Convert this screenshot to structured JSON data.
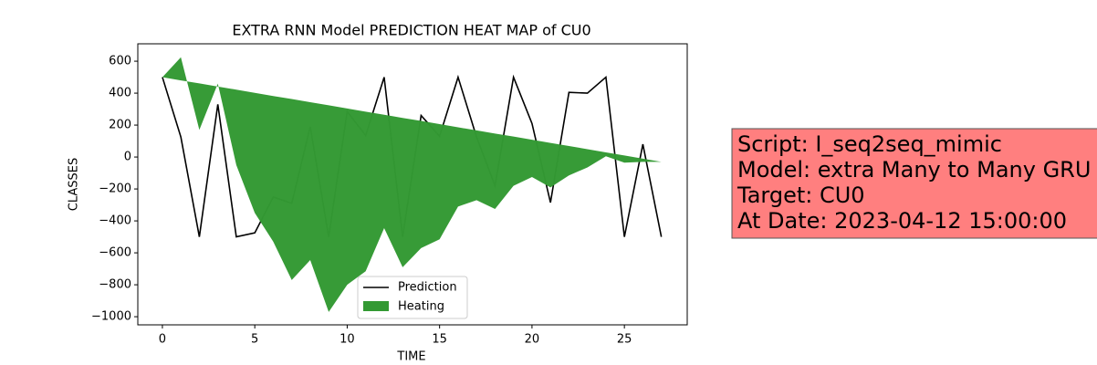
{
  "chart_data": {
    "type": "line",
    "title": "EXTRA RNN Model PREDICTION HEAT MAP of CU0",
    "x_label": "TIME",
    "y_label": "CLASSES",
    "x": [
      0,
      1,
      2,
      3,
      4,
      5,
      6,
      7,
      8,
      9,
      10,
      11,
      12,
      13,
      14,
      15,
      16,
      17,
      18,
      19,
      20,
      21,
      22,
      23,
      24,
      25,
      26,
      27
    ],
    "xlim": [
      -1.33,
      28.4
    ],
    "ylim": [
      -1051,
      709
    ],
    "xticks": [
      0,
      5,
      10,
      15,
      20,
      25
    ],
    "yticks": [
      {
        "value": -1000,
        "label": "−1000"
      },
      {
        "value": -800,
        "label": "−800"
      },
      {
        "value": -600,
        "label": "−600"
      },
      {
        "value": -400,
        "label": "−400"
      },
      {
        "value": -200,
        "label": "−200"
      },
      0,
      200,
      400,
      600
    ],
    "legend": "lower center",
    "series": [
      {
        "name": "Prediction",
        "type": "line",
        "color": "#000000",
        "values": [
          500,
          125,
          -500,
          330,
          -500,
          -475,
          -250,
          -290,
          190,
          -500,
          285,
          135,
          500,
          -500,
          260,
          130,
          500,
          125,
          -180,
          500,
          210,
          -285,
          405,
          400,
          500,
          -500,
          80,
          -500
        ]
      },
      {
        "name": "Heating",
        "type": "fill_between",
        "color": "#339933",
        "y1": [
          500,
          480,
          461,
          441,
          422,
          402,
          382,
          363,
          343,
          324,
          304,
          284,
          265,
          245,
          226,
          206,
          186,
          167,
          147,
          128,
          108,
          88,
          69,
          49,
          29,
          10,
          -10,
          -30
        ],
        "y2": [
          500,
          625,
          170,
          460,
          -50,
          -350,
          -530,
          -770,
          -645,
          -970,
          -800,
          -715,
          -445,
          -690,
          -570,
          -515,
          -310,
          -270,
          -325,
          -180,
          -125,
          -190,
          -115,
          -65,
          5,
          -35,
          -30,
          -30
        ]
      }
    ],
    "annotation_lines": [
      "Script: I_seq2seq_mimic",
      "Model: extra Many to Many GRU",
      "Target: CU0",
      "At Date: 2023-04-12 15:00:00"
    ],
    "annotation_color": "#ff7f7f"
  }
}
